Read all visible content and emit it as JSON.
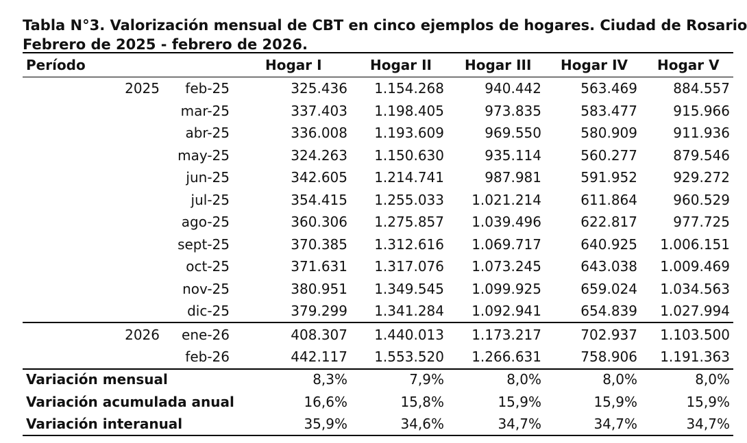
{
  "title_lines": [
    "Tabla N°3. Valorización mensual de CBT en cinco ejemplos de hogares. Ciudad de Rosario.",
    "Febrero de 2025 - febrero de 2026."
  ],
  "header": [
    "Período",
    "Hogar I",
    "Hogar II",
    "Hogar III",
    "Hogar IV",
    "Hogar V"
  ],
  "groups": [
    {
      "year": "2025",
      "rows": [
        {
          "period": "feb-25",
          "values": [
            "325.436",
            "1.154.268",
            "940.442",
            "563.469",
            "884.557"
          ]
        },
        {
          "period": "mar-25",
          "values": [
            "337.403",
            "1.198.405",
            "973.835",
            "583.477",
            "915.966"
          ]
        },
        {
          "period": "abr-25",
          "values": [
            "336.008",
            "1.193.609",
            "969.550",
            "580.909",
            "911.936"
          ]
        },
        {
          "period": "may-25",
          "values": [
            "324.263",
            "1.150.630",
            "935.114",
            "560.277",
            "879.546"
          ]
        },
        {
          "period": "jun-25",
          "values": [
            "342.605",
            "1.214.741",
            "987.981",
            "591.952",
            "929.272"
          ]
        },
        {
          "period": "jul-25",
          "values": [
            "354.415",
            "1.255.033",
            "1.021.214",
            "611.864",
            "960.529"
          ]
        },
        {
          "period": "ago-25",
          "values": [
            "360.306",
            "1.275.857",
            "1.039.496",
            "622.817",
            "977.725"
          ]
        },
        {
          "period": "sept-25",
          "values": [
            "370.385",
            "1.312.616",
            "1.069.717",
            "640.925",
            "1.006.151"
          ]
        },
        {
          "period": "oct-25",
          "values": [
            "371.631",
            "1.317.076",
            "1.073.245",
            "643.038",
            "1.009.469"
          ]
        },
        {
          "period": "nov-25",
          "values": [
            "380.951",
            "1.349.545",
            "1.099.925",
            "659.024",
            "1.034.563"
          ]
        },
        {
          "period": "dic-25",
          "values": [
            "379.299",
            "1.341.284",
            "1.092.941",
            "654.839",
            "1.027.994"
          ]
        }
      ]
    },
    {
      "year": "2026",
      "rows": [
        {
          "period": "ene-26",
          "values": [
            "408.307",
            "1.440.013",
            "1.173.217",
            "702.937",
            "1.103.500"
          ]
        },
        {
          "period": "feb-26",
          "values": [
            "442.117",
            "1.553.520",
            "1.266.631",
            "758.906",
            "1.191.363"
          ]
        }
      ]
    }
  ],
  "summary": [
    {
      "label": "Variación mensual",
      "values": [
        "8,3%",
        "7,9%",
        "8,0%",
        "8,0%",
        "8,0%"
      ]
    },
    {
      "label": "Variación acumulada anual",
      "values": [
        "16,6%",
        "15,8%",
        "15,9%",
        "15,9%",
        "15,9%"
      ]
    },
    {
      "label": "Variación interanual",
      "values": [
        "35,9%",
        "34,6%",
        "34,7%",
        "34,7%",
        "34,7%"
      ]
    }
  ]
}
